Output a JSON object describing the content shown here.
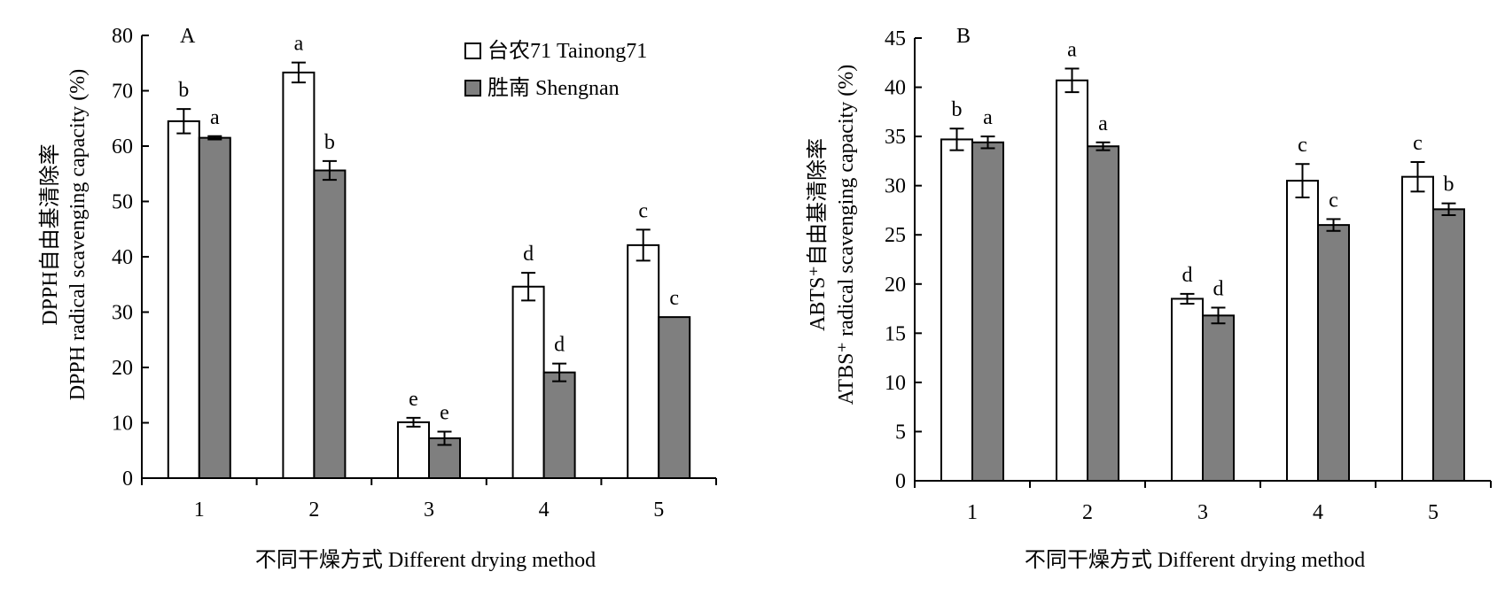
{
  "chart_data": [
    {
      "type": "bar",
      "panel_label": "A",
      "categories": [
        "1",
        "2",
        "3",
        "4",
        "5"
      ],
      "ylim": [
        0,
        80
      ],
      "yticks": [
        0,
        10,
        20,
        30,
        40,
        50,
        60,
        70,
        80
      ],
      "ylabel_cn": "DPPH自由基清除率",
      "ylabel_en": "DPPH radical scavenging capacity (%)",
      "xlabel": "不同干燥方式 Different drying method",
      "legend_position": "top-right",
      "series": [
        {
          "name": "台农71 Tainong71",
          "color": "#ffffff",
          "values": [
            64.5,
            73.3,
            10.1,
            34.6,
            42.1
          ],
          "errors": [
            2.2,
            1.8,
            0.8,
            2.5,
            2.8
          ],
          "letters": [
            "b",
            "a",
            "e",
            "d",
            "c"
          ]
        },
        {
          "name": "胜南 Shengnan",
          "color": "#7f7f7f",
          "values": [
            61.5,
            55.6,
            7.2,
            19.1,
            29.1
          ],
          "errors": [
            0.3,
            1.7,
            1.2,
            1.6,
            0
          ],
          "letters": [
            "a",
            "b",
            "e",
            "d",
            "c"
          ]
        }
      ]
    },
    {
      "type": "bar",
      "panel_label": "B",
      "categories": [
        "1",
        "2",
        "3",
        "4",
        "5"
      ],
      "ylim": [
        0,
        45
      ],
      "yticks": [
        0,
        5,
        10,
        15,
        20,
        25,
        30,
        35,
        40,
        45
      ],
      "ylabel_cn": "ABTS⁺自由基清除率",
      "ylabel_en": "ATBS⁺ radical scavenging capacity (%)",
      "xlabel": "不同干燥方式 Different drying method",
      "series": [
        {
          "name": "台农71 Tainong71",
          "color": "#ffffff",
          "values": [
            34.7,
            40.7,
            18.5,
            30.5,
            30.9
          ],
          "errors": [
            1.1,
            1.2,
            0.5,
            1.7,
            1.5
          ],
          "letters": [
            "b",
            "a",
            "d",
            "c",
            "c"
          ]
        },
        {
          "name": "胜南 Shengnan",
          "color": "#7f7f7f",
          "values": [
            34.4,
            34.0,
            16.8,
            26.0,
            27.6
          ],
          "errors": [
            0.6,
            0.4,
            0.8,
            0.6,
            0.6
          ],
          "letters": [
            "a",
            "a",
            "d",
            "c",
            "b"
          ]
        }
      ]
    }
  ]
}
